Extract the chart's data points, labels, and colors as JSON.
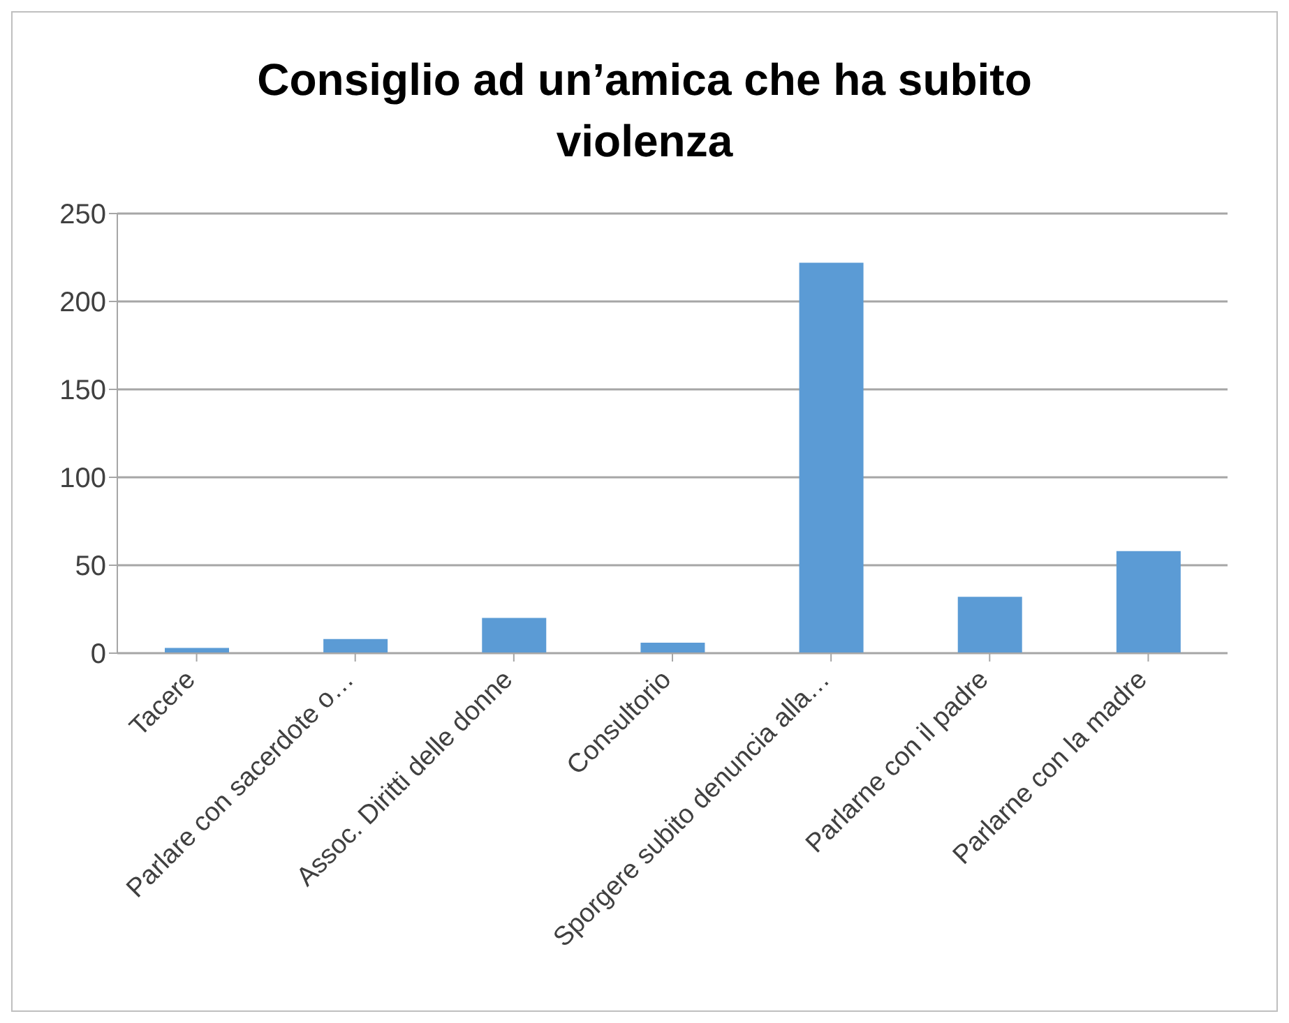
{
  "chart_data": {
    "type": "bar",
    "title": "Consiglio ad un’amica che ha subito violenza",
    "categories": [
      "Tacere",
      "Parlare con sacerdote o…",
      "Assoc. Diritti delle donne",
      "Consultorio",
      "Sporgere subito denuncia alla…",
      "Parlarne con il padre",
      "Parlarne con la madre"
    ],
    "values": [
      3,
      8,
      20,
      6,
      222,
      32,
      58
    ],
    "color": "#5b9bd5",
    "ylim": [
      0,
      250
    ],
    "yticks": [
      0,
      50,
      100,
      150,
      200,
      250
    ],
    "grid": "y"
  }
}
